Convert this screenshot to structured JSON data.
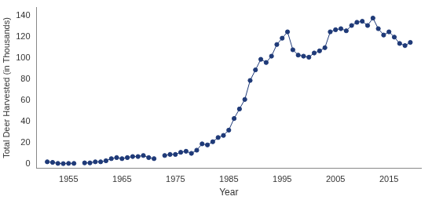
{
  "chart_data": {
    "type": "line",
    "x_label": "Year",
    "y_label": "Total Deer Harvested (in Thousands)",
    "x": [
      1951,
      1952,
      1953,
      1954,
      1955,
      1956,
      1957,
      1958,
      1959,
      1960,
      1961,
      1962,
      1963,
      1964,
      1965,
      1966,
      1967,
      1968,
      1969,
      1970,
      1971,
      1972,
      1973,
      1974,
      1975,
      1976,
      1977,
      1978,
      1979,
      1980,
      1981,
      1982,
      1983,
      1984,
      1985,
      1986,
      1987,
      1988,
      1989,
      1990,
      1991,
      1992,
      1993,
      1994,
      1995,
      1996,
      1997,
      1998,
      1999,
      2000,
      2001,
      2002,
      2003,
      2004,
      2005,
      2006,
      2007,
      2008,
      2009,
      2010,
      2011,
      2012,
      2013,
      2014,
      2015,
      2016,
      2017,
      2018,
      2019
    ],
    "values": [
      2,
      1.5,
      0.5,
      0.3,
      0.5,
      0.5,
      null,
      1,
      1,
      2,
      2,
      3,
      5,
      6,
      5,
      6,
      7,
      7,
      8,
      6,
      5,
      null,
      8,
      9,
      9,
      11,
      12,
      10,
      13,
      19,
      18,
      21,
      25,
      27,
      32,
      43,
      52,
      61,
      79,
      89,
      99,
      96,
      102,
      113,
      119,
      125,
      108,
      103,
      102,
      101,
      105,
      107,
      110,
      125,
      127,
      128,
      126,
      131,
      134,
      135,
      131,
      138,
      128,
      122,
      125,
      120,
      114,
      112,
      115
    ],
    "color": "#1f3a78",
    "marker": "circle",
    "line_style": "solid",
    "xlim": [
      1949,
      2021
    ],
    "xticks": [
      1955,
      1965,
      1975,
      1985,
      1995,
      2005,
      2015
    ],
    "ylim": [
      -4,
      148
    ],
    "yticks": [
      0,
      20,
      40,
      60,
      80,
      100,
      120,
      140
    ],
    "grid": false
  }
}
